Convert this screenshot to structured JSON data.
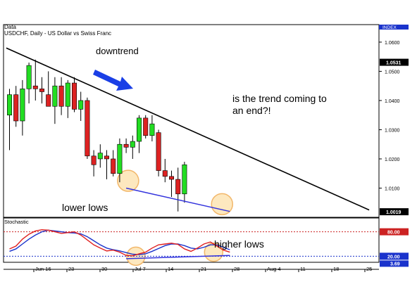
{
  "panel_label": "Data",
  "chart_data": {
    "type": "candlestick",
    "symbol_title": "USDCHF, Daily - US Dollar vs Swiss Franc",
    "index_label": "INDEX",
    "y_ticks": [
      1.06,
      1.05,
      1.04,
      1.03,
      1.02,
      1.01
    ],
    "y_tick_labels": [
      "1.0600",
      "1.0500",
      "1.0400",
      "1.0300",
      "1.0200",
      "1.0100"
    ],
    "ylim": [
      1.0,
      1.066
    ],
    "price_flags": [
      {
        "value": 1.0531,
        "label": "1.0531"
      },
      {
        "value": 1.0019,
        "label": "1.0019"
      }
    ],
    "x_ticks": [
      "Jun 16",
      "23",
      "30",
      "Jul 7",
      "14",
      "21",
      "28",
      "Aug 4",
      "11",
      "18",
      "25"
    ],
    "candles": [
      {
        "o": 1.035,
        "h": 1.044,
        "l": 1.023,
        "c": 1.042
      },
      {
        "o": 1.042,
        "h": 1.045,
        "l": 1.031,
        "c": 1.033
      },
      {
        "o": 1.033,
        "h": 1.047,
        "l": 1.028,
        "c": 1.044
      },
      {
        "o": 1.044,
        "h": 1.053,
        "l": 1.039,
        "c": 1.052
      },
      {
        "o": 1.045,
        "h": 1.054,
        "l": 1.04,
        "c": 1.044
      },
      {
        "o": 1.044,
        "h": 1.048,
        "l": 1.039,
        "c": 1.043
      },
      {
        "o": 1.042,
        "h": 1.05,
        "l": 1.038,
        "c": 1.038
      },
      {
        "o": 1.038,
        "h": 1.048,
        "l": 1.032,
        "c": 1.045
      },
      {
        "o": 1.045,
        "h": 1.048,
        "l": 1.035,
        "c": 1.038
      },
      {
        "o": 1.038,
        "h": 1.047,
        "l": 1.034,
        "c": 1.046
      },
      {
        "o": 1.046,
        "h": 1.048,
        "l": 1.036,
        "c": 1.037
      },
      {
        "o": 1.037,
        "h": 1.043,
        "l": 1.033,
        "c": 1.04
      },
      {
        "o": 1.04,
        "h": 1.041,
        "l": 1.02,
        "c": 1.021
      },
      {
        "o": 1.021,
        "h": 1.023,
        "l": 1.014,
        "c": 1.018
      },
      {
        "o": 1.02,
        "h": 1.025,
        "l": 1.017,
        "c": 1.022
      },
      {
        "o": 1.021,
        "h": 1.023,
        "l": 1.013,
        "c": 1.02
      },
      {
        "o": 1.02,
        "h": 1.023,
        "l": 1.014,
        "c": 1.015
      },
      {
        "o": 1.015,
        "h": 1.027,
        "l": 1.012,
        "c": 1.025
      },
      {
        "o": 1.025,
        "h": 1.027,
        "l": 1.022,
        "c": 1.024
      },
      {
        "o": 1.024,
        "h": 1.028,
        "l": 1.02,
        "c": 1.026
      },
      {
        "o": 1.026,
        "h": 1.035,
        "l": 1.022,
        "c": 1.034
      },
      {
        "o": 1.034,
        "h": 1.035,
        "l": 1.027,
        "c": 1.028
      },
      {
        "o": 1.028,
        "h": 1.035,
        "l": 1.026,
        "c": 1.032
      },
      {
        "o": 1.029,
        "h": 1.03,
        "l": 1.014,
        "c": 1.016
      },
      {
        "o": 1.016,
        "h": 1.02,
        "l": 1.012,
        "c": 1.014
      },
      {
        "o": 1.014,
        "h": 1.016,
        "l": 1.007,
        "c": 1.013
      },
      {
        "o": 1.013,
        "h": 1.017,
        "l": 1.002,
        "c": 1.008
      },
      {
        "o": 1.008,
        "h": 1.019,
        "l": 1.005,
        "c": 1.018
      }
    ],
    "trendline": {
      "from_index": -0.5,
      "from_value": 1.058,
      "to_index": 55.5,
      "to_value": 1.0025
    },
    "lows_line": {
      "from_index": 18,
      "from_value": 1.01,
      "to_index": 34,
      "to_value": 1.002
    },
    "circles_top": [
      {
        "index": 18.3,
        "value": 1.0125
      },
      {
        "index": 32.8,
        "value": 1.0045
      }
    ],
    "stochastic": {
      "label": "Stochastic",
      "ylim": [
        0,
        100
      ],
      "upper_level": 80,
      "lower_level": 20,
      "level_labels": [
        "80.00",
        "20.00"
      ],
      "current_label": "3.69",
      "k": [
        38,
        45,
        62,
        74,
        82,
        85,
        84,
        80,
        76,
        78,
        80,
        72,
        60,
        48,
        40,
        33,
        35,
        30,
        22,
        21,
        26,
        30,
        40,
        48,
        50,
        52,
        49,
        38,
        32,
        40,
        50,
        55,
        45,
        35,
        30
      ],
      "d": [
        32,
        38,
        50,
        62,
        72,
        80,
        84,
        82,
        80,
        78,
        77,
        75,
        68,
        58,
        48,
        40,
        36,
        33,
        29,
        25,
        24,
        26,
        32,
        39,
        46,
        50,
        50,
        46,
        40,
        38,
        42,
        48,
        48,
        42,
        36
      ],
      "higher_lows_line": {
        "from_index": 18,
        "from_value": 14,
        "to_index": 34,
        "to_value": 22
      },
      "circles": [
        {
          "index": 19.5,
          "value": 20
        },
        {
          "index": 31.5,
          "value": 30
        }
      ]
    }
  },
  "annotations": {
    "downtrend": "downtrend",
    "trend_question": "is the trend coming to\nan end?!",
    "lower_lows": "lower lows",
    "higher_lows": "higher lows"
  },
  "colors": {
    "bull": "#22dd22",
    "bear": "#dd2222",
    "trend": "#000000",
    "lows_line": "#3333dd",
    "arrow": "#1a3fe6",
    "circle_fill": "#fde8bf",
    "circle_stroke": "#f2b76a",
    "stoch_k": "#e02020",
    "stoch_d": "#1a33cc",
    "level_upper": "#cc2222",
    "level_lower": "#1a33cc",
    "flag_black": "#000000",
    "flag_red": "#cc0000",
    "flag_blue": "#1a33cc"
  }
}
